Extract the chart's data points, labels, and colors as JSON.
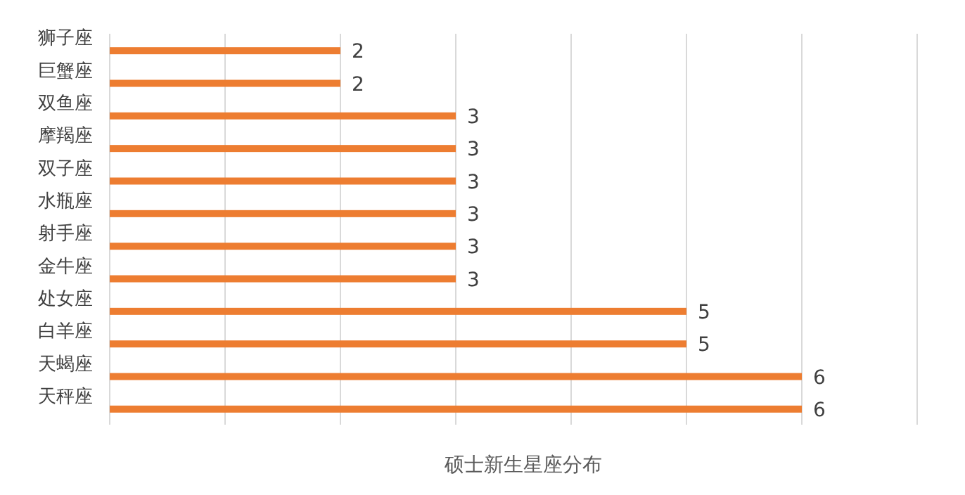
{
  "chart_data": {
    "type": "bar",
    "orientation": "horizontal",
    "xlabel": "硕士新生星座分布",
    "categories": [
      "狮子座",
      "巨蟹座",
      "双鱼座",
      "摩羯座",
      "双子座",
      "水瓶座",
      "射手座",
      "金牛座",
      "处女座",
      "白羊座",
      "天蝎座",
      "天秤座"
    ],
    "values": [
      2,
      2,
      3,
      3,
      3,
      3,
      3,
      3,
      5,
      5,
      6,
      6
    ],
    "color": "#ed7d31",
    "xlim": [
      0,
      7
    ],
    "xticks": [
      {
        "value": 0,
        "label": null
      },
      {
        "value": 1,
        "label": null
      },
      {
        "value": 2,
        "label": null
      },
      {
        "value": 3,
        "label": null
      },
      {
        "value": 4,
        "label": null
      },
      {
        "value": 5,
        "label": null
      },
      {
        "value": 6,
        "label": null
      },
      {
        "value": 7,
        "label": null
      }
    ],
    "grid": "x",
    "tick_labels": "y",
    "data_labels": true
  }
}
